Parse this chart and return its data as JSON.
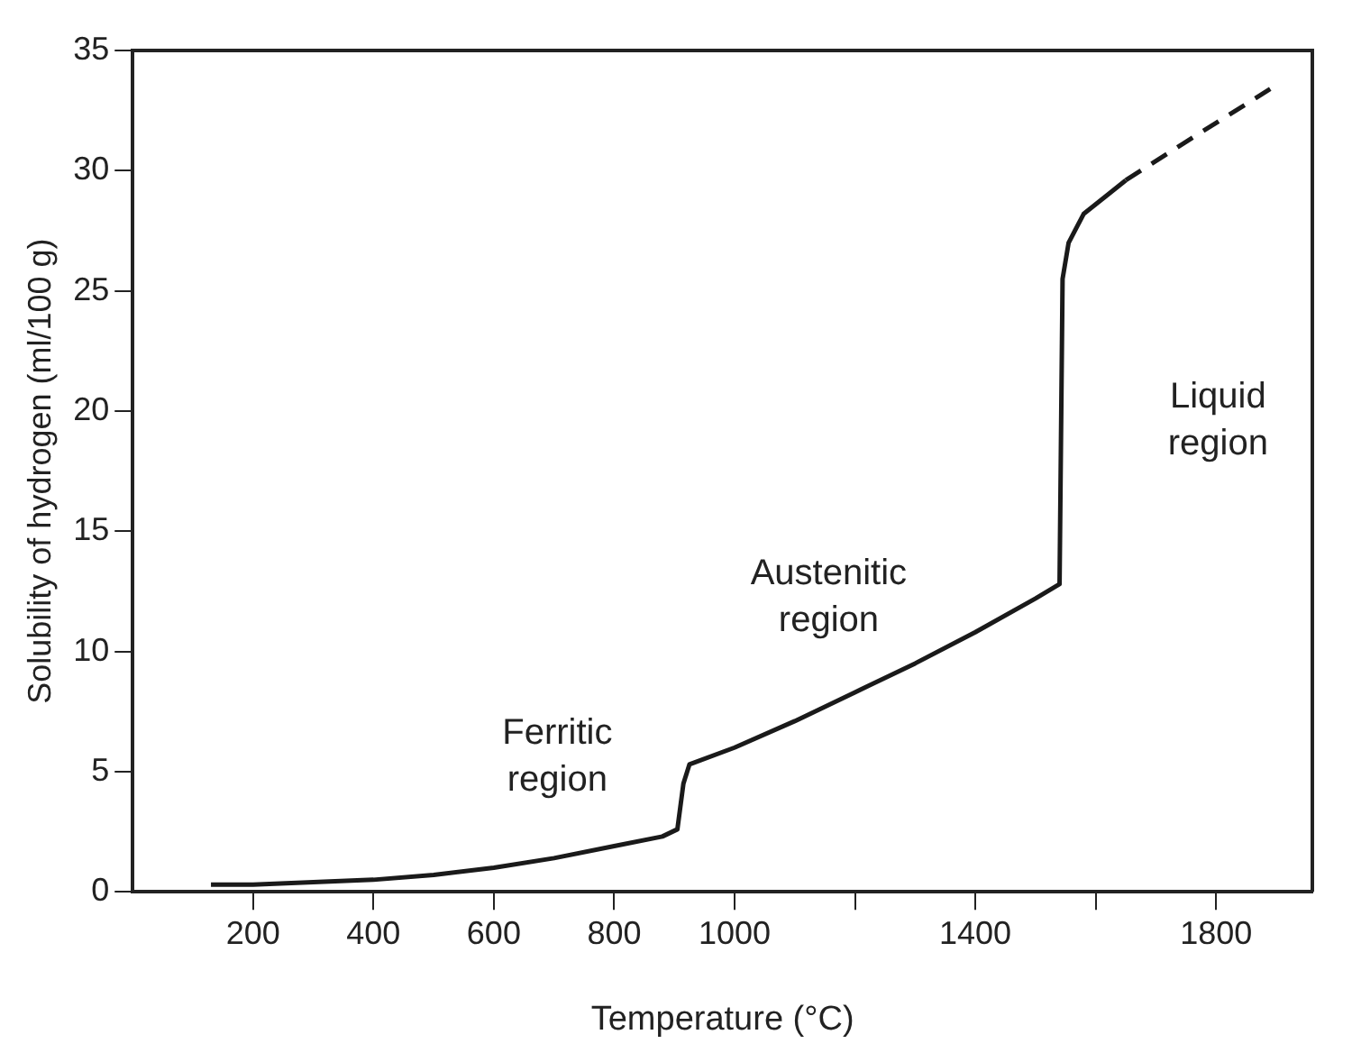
{
  "chart_data": {
    "type": "line",
    "xlabel": "Temperature (°C)",
    "ylabel": "Solubility of hydrogen (ml/100 g)",
    "xlim": [
      0,
      1960
    ],
    "xticks": [
      200,
      400,
      600,
      800,
      1000,
      {
        "value": 1200,
        "label": null
      },
      1400,
      {
        "value": 1600,
        "label": null
      },
      1800
    ],
    "ylim": [
      0,
      35
    ],
    "yticks": [
      0,
      5,
      10,
      15,
      20,
      25,
      30,
      35
    ],
    "series": [
      {
        "color": "#1a1a1a",
        "line_style": "solid",
        "x": [
          130,
          200,
          300,
          400,
          500,
          600,
          700,
          800,
          880,
          905,
          915,
          925,
          1000,
          1100,
          1200,
          1300,
          1400,
          1500,
          1540,
          1545,
          1555,
          1580,
          1620,
          1650
        ],
        "values": [
          0.3,
          0.3,
          0.4,
          0.5,
          0.7,
          1.0,
          1.4,
          1.9,
          2.3,
          2.6,
          4.5,
          5.3,
          6.0,
          7.1,
          8.3,
          9.5,
          10.8,
          12.2,
          12.8,
          25.5,
          27.0,
          28.2,
          29.0,
          29.6
        ]
      },
      {
        "color": "#1a1a1a",
        "line_style": "dashed",
        "x": [
          1650,
          1750,
          1890
        ],
        "values": [
          29.6,
          31.2,
          33.4
        ]
      }
    ],
    "annotations": [
      "Ferritic region",
      "Austenitic region",
      "Liquid region"
    ],
    "grid": false,
    "legend": false,
    "marker": "none"
  }
}
